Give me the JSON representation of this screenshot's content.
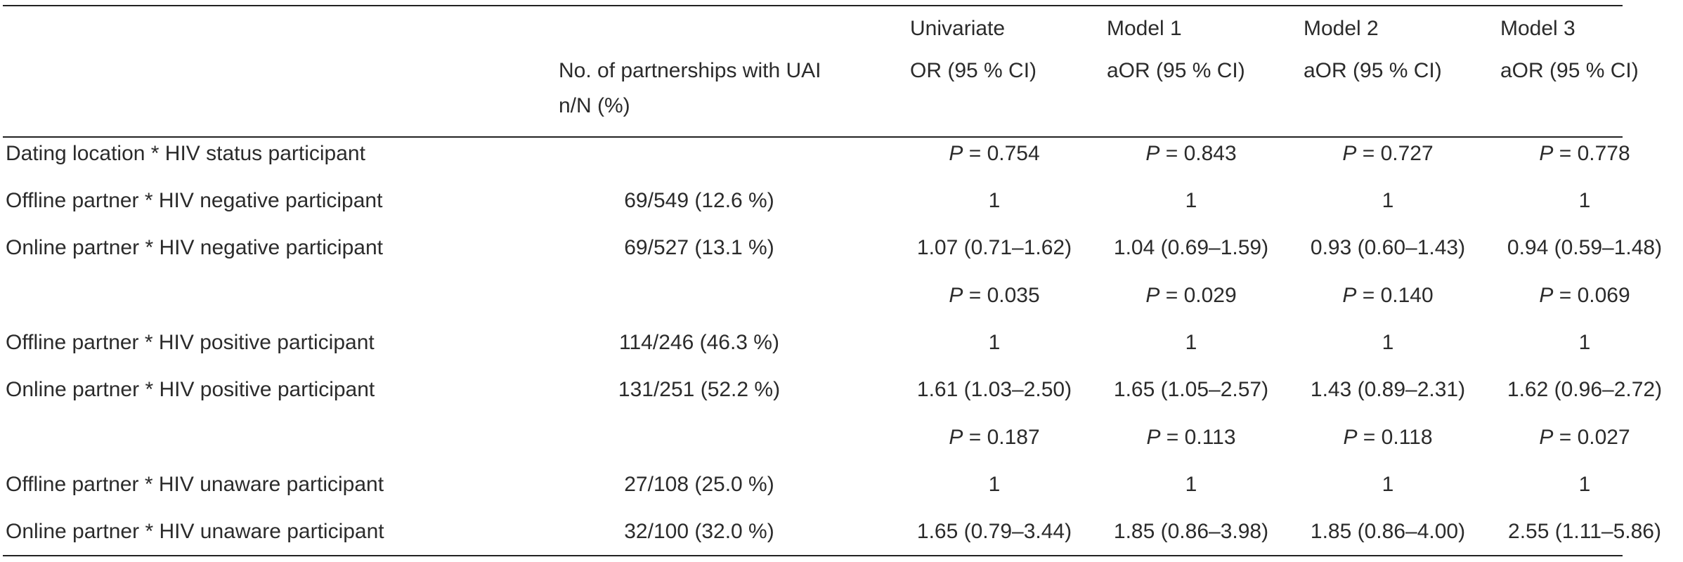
{
  "header": {
    "col_n": [
      "No. of partnerships with UAI",
      "n/N (%)"
    ],
    "col_univariate": [
      "Univariate",
      "OR (95 % CI)"
    ],
    "col_model1": [
      "Model 1",
      "aOR (95 % CI)"
    ],
    "col_model2": [
      "Model 2",
      "aOR (95 % CI)"
    ],
    "col_model3": [
      "Model 3",
      "aOR (95 % CI)"
    ]
  },
  "rows": [
    {
      "label": "Dating location * HIV status participant",
      "n": "",
      "univariate": "0.754",
      "model1": "0.843",
      "model2": "0.727",
      "model3": "0.778",
      "is_p": true
    },
    {
      "label": "Offline partner * HIV negative participant",
      "n": "69/549 (12.6 %)",
      "univariate": "1",
      "model1": "1",
      "model2": "1",
      "model3": "1",
      "is_p": false
    },
    {
      "label": "Online partner * HIV negative participant",
      "n": "69/527 (13.1 %)",
      "univariate": "1.07 (0.71–1.62)",
      "model1": "1.04 (0.69–1.59)",
      "model2": "0.93 (0.60–1.43)",
      "model3": "0.94 (0.59–1.48)",
      "is_p": false
    },
    {
      "label": "",
      "n": "",
      "univariate": "0.035",
      "model1": "0.029",
      "model2": "0.140",
      "model3": "0.069",
      "is_p": true
    },
    {
      "label": "Offline partner * HIV positive participant",
      "n": "114/246 (46.3 %)",
      "univariate": "1",
      "model1": "1",
      "model2": "1",
      "model3": "1",
      "is_p": false
    },
    {
      "label": "Online partner * HIV positive participant",
      "n": "131/251 (52.2 %)",
      "univariate": "1.61 (1.03–2.50)",
      "model1": "1.65 (1.05–2.57)",
      "model2": "1.43 (0.89–2.31)",
      "model3": "1.62 (0.96–2.72)",
      "is_p": false
    },
    {
      "label": "",
      "n": "",
      "univariate": "0.187",
      "model1": "0.113",
      "model2": "0.118",
      "model3": "0.027",
      "is_p": true
    },
    {
      "label": "Offline partner * HIV unaware participant",
      "n": "27/108 (25.0 %)",
      "univariate": "1",
      "model1": "1",
      "model2": "1",
      "model3": "1",
      "is_p": false
    },
    {
      "label": "Online partner * HIV unaware participant",
      "n": "32/100 (32.0 %)",
      "univariate": "1.65 (0.79–3.44)",
      "model1": "1.85 (0.86–3.98)",
      "model2": "1.85 (0.86–4.00)",
      "model3": "2.55 (1.11–5.86)",
      "is_p": false
    }
  ],
  "p_prefix": "P",
  "p_equals": " = "
}
